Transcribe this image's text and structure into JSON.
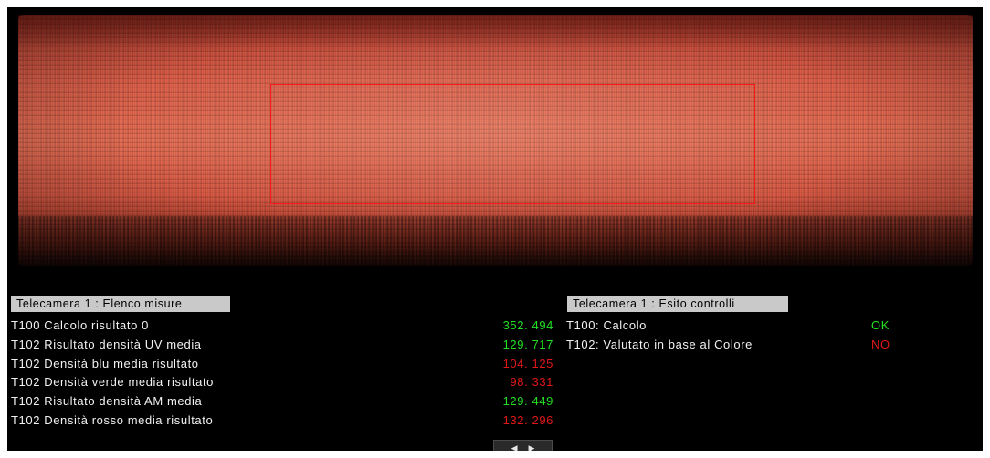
{
  "measurements": {
    "title": "Telecamera  1 : Elenco misure",
    "rows": [
      {
        "label": "T100  Calcolo  risultato  0",
        "value": "352. 494",
        "status": "green"
      },
      {
        "label": "T102  Risultato  densità  UV  media",
        "value": "129. 717",
        "status": "green"
      },
      {
        "label": "T102  Densità  blu  media  risultato",
        "value": "104. 125",
        "status": "red"
      },
      {
        "label": "T102  Densità  verde  media  risultato",
        "value": "98. 331",
        "status": "red"
      },
      {
        "label": "T102  Risultato  densità  AM  media",
        "value": "129. 449",
        "status": "green"
      },
      {
        "label": "T102  Densità  rosso  media  risultato",
        "value": "132. 296",
        "status": "red"
      }
    ]
  },
  "results": {
    "title": "Telecamera  1 : Esito  controlli",
    "rows": [
      {
        "label": "T100:  Calcolo",
        "value": "OK",
        "status": "green"
      },
      {
        "label": "T102:  Valutato  in  base  al  Colore",
        "value": "NO",
        "status": "red"
      }
    ]
  },
  "navigation": {
    "prev_icon": "◀",
    "next_icon": "▶"
  },
  "colors": {
    "ok": "#22e022",
    "fail": "#e01818",
    "roi": "#ff1a1a",
    "header_bg": "#c9c9c9"
  },
  "icons": {
    "prev": "triangle-left-icon",
    "next": "triangle-right-icon"
  }
}
